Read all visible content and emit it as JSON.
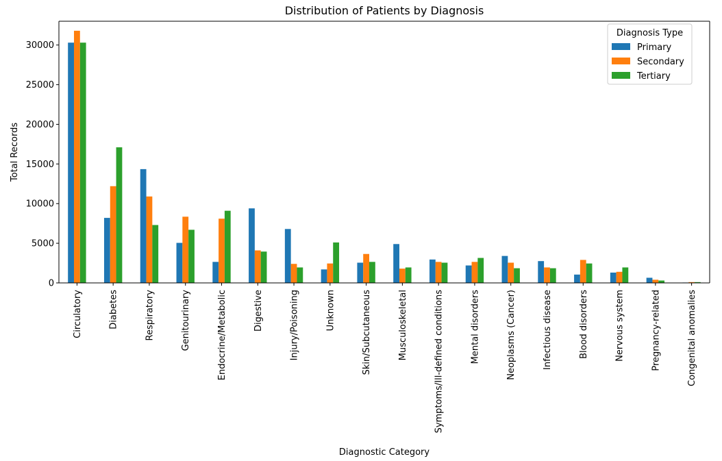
{
  "chart_data": {
    "type": "bar",
    "title": "Distribution of Patients by Diagnosis",
    "xlabel": "Diagnostic Category",
    "ylabel": "Total Records",
    "ylim": [
      0,
      33000
    ],
    "yticks": [
      0,
      5000,
      10000,
      15000,
      20000,
      25000,
      30000
    ],
    "ytick_labels": [
      "0",
      "5000",
      "10000",
      "15000",
      "20000",
      "25000",
      "30000"
    ],
    "grid": false,
    "legend": {
      "title": "Diagnosis Type",
      "position": "top-right"
    },
    "categories": [
      "Circulatory",
      "Diabetes",
      "Respiratory",
      "Genitourinary",
      "Endocrine/Metabolic",
      "Digestive",
      "Injury/Poisoning",
      "Unknown",
      "Skin/Subcutaneous",
      "Musculoskeletal",
      "Symptoms/Ill-defined conditions",
      "Mental disorders",
      "Neoplasms (Cancer)",
      "Infectious disease",
      "Blood disorders",
      "Nervous system",
      "Pregnancy-related",
      "Congenital anomalies"
    ],
    "series": [
      {
        "name": "Primary",
        "color": "#1f77b4",
        "values": [
          30300,
          8200,
          14350,
          5050,
          2650,
          9400,
          6800,
          1700,
          2550,
          4900,
          2950,
          2200,
          3400,
          2750,
          1050,
          1300,
          650,
          50
        ]
      },
      {
        "name": "Secondary",
        "color": "#ff7f0e",
        "values": [
          31800,
          12200,
          10900,
          8350,
          8100,
          4100,
          2400,
          2450,
          3650,
          1800,
          2650,
          2650,
          2550,
          1950,
          2900,
          1400,
          400,
          100
        ]
      },
      {
        "name": "Tertiary",
        "color": "#2ca02c",
        "values": [
          30300,
          17100,
          7300,
          6700,
          9100,
          3950,
          1950,
          5100,
          2650,
          1950,
          2550,
          3150,
          1850,
          1850,
          2450,
          1950,
          300,
          100
        ]
      }
    ]
  }
}
